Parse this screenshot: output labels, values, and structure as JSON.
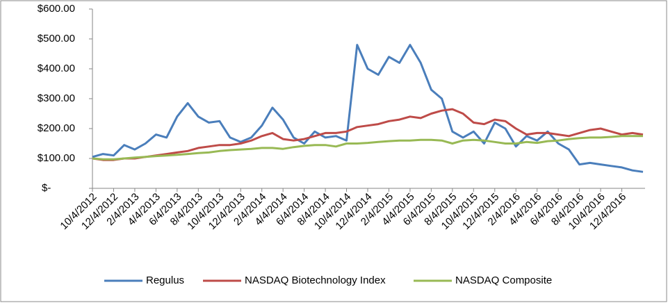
{
  "chart_data": {
    "type": "line",
    "categories": [
      "10/4/2012",
      null,
      "12/4/2012",
      null,
      "2/4/2013",
      null,
      "4/4/2013",
      null,
      "6/4/2013",
      null,
      "8/4/2013",
      null,
      "10/4/2013",
      null,
      "12/4/2013",
      null,
      "2/4/2014",
      null,
      "4/4/2014",
      null,
      "6/4/2014",
      null,
      "8/4/2014",
      null,
      "10/4/2014",
      null,
      "12/4/2014",
      null,
      "2/4/2015",
      null,
      "4/4/2015",
      null,
      "6/4/2015",
      null,
      "8/4/2015",
      null,
      "10/4/2015",
      null,
      "12/4/2015",
      null,
      "2/4/2016",
      null,
      "4/4/2016",
      null,
      "6/4/2016",
      null,
      "8/4/2016",
      null,
      "10/4/2016",
      null,
      "12/4/2016",
      null,
      null
    ],
    "series": [
      {
        "name": "Regulus",
        "color": "#4a7ebb",
        "values": [
          105,
          115,
          110,
          145,
          130,
          150,
          180,
          170,
          240,
          285,
          240,
          220,
          225,
          170,
          155,
          170,
          210,
          270,
          230,
          170,
          150,
          190,
          170,
          175,
          160,
          480,
          400,
          380,
          440,
          420,
          480,
          420,
          330,
          300,
          190,
          170,
          190,
          150,
          220,
          200,
          140,
          175,
          160,
          190,
          150,
          130,
          80,
          85,
          80,
          75,
          70,
          60,
          55
        ]
      },
      {
        "name": "NASDAQ Biotechnology Index",
        "color": "#be4b48",
        "values": [
          100,
          95,
          95,
          100,
          100,
          105,
          110,
          115,
          120,
          125,
          135,
          140,
          145,
          145,
          150,
          160,
          175,
          185,
          165,
          160,
          165,
          175,
          185,
          185,
          190,
          205,
          210,
          215,
          225,
          230,
          240,
          235,
          250,
          260,
          265,
          250,
          220,
          215,
          230,
          225,
          200,
          180,
          185,
          185,
          180,
          175,
          185,
          195,
          200,
          190,
          180,
          185,
          180
        ]
      },
      {
        "name": "NASDAQ Composite",
        "color": "#98b954",
        "values": [
          100,
          97,
          97,
          100,
          103,
          105,
          108,
          110,
          112,
          115,
          118,
          120,
          125,
          128,
          130,
          132,
          135,
          135,
          132,
          138,
          142,
          145,
          145,
          140,
          150,
          150,
          152,
          155,
          158,
          160,
          160,
          162,
          162,
          160,
          150,
          160,
          162,
          160,
          155,
          150,
          150,
          155,
          152,
          158,
          160,
          165,
          168,
          170,
          170,
          172,
          175,
          175,
          175
        ]
      }
    ],
    "ylim": [
      0,
      600
    ],
    "yticks": [
      {
        "value": 0,
        "label": "$-"
      },
      {
        "value": 100,
        "label": "$100.00"
      },
      {
        "value": 200,
        "label": "$200.00"
      },
      {
        "value": 300,
        "label": "$300.00"
      },
      {
        "value": 400,
        "label": "$400.00"
      },
      {
        "value": 500,
        "label": "$500.00"
      },
      {
        "value": 600,
        "label": "$600.00"
      }
    ],
    "legend": "bottom"
  }
}
